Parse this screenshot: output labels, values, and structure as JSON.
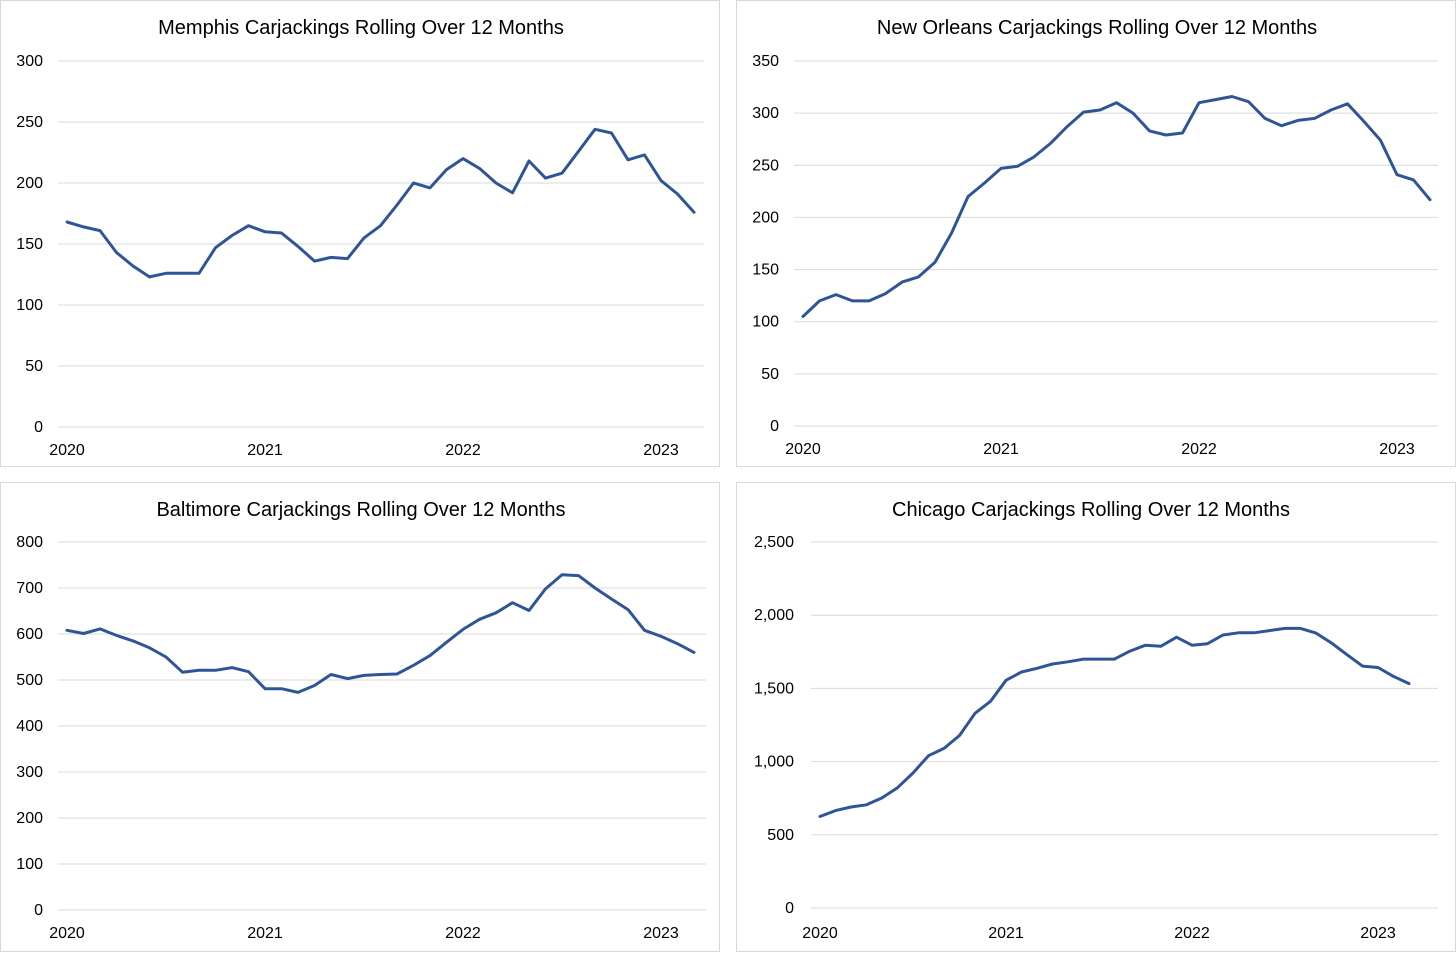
{
  "chart_data": [
    {
      "type": "line",
      "title": "Memphis Carjackings Rolling Over 12 Months",
      "xlabel": "",
      "ylabel": "",
      "x_tick_labels": [
        "2020",
        "2021",
        "2022",
        "2023"
      ],
      "y_tick_labels": [
        "0",
        "50",
        "100",
        "150",
        "200",
        "250",
        "300"
      ],
      "ylim": [
        0,
        300
      ],
      "grid": true,
      "legend": "none",
      "series_color": "#2f5597",
      "series": [
        {
          "values": [
            168,
            164,
            161,
            143,
            132,
            123,
            126,
            126,
            126,
            147,
            157,
            165,
            160,
            159,
            148,
            136,
            139,
            138,
            155,
            165,
            182,
            200,
            196,
            211,
            220,
            212,
            200,
            192,
            218,
            204,
            208,
            226,
            244,
            241,
            219,
            223,
            202,
            191,
            176
          ]
        }
      ]
    },
    {
      "type": "line",
      "title": "New Orleans Carjackings Rolling Over 12 Months",
      "xlabel": "",
      "ylabel": "",
      "x_tick_labels": [
        "2020",
        "2021",
        "2022",
        "2023"
      ],
      "y_tick_labels": [
        "0",
        "50",
        "100",
        "150",
        "200",
        "250",
        "300",
        "350"
      ],
      "ylim": [
        0,
        350
      ],
      "grid": true,
      "legend": "none",
      "series_color": "#2f5597",
      "series": [
        {
          "values": [
            105,
            120,
            126,
            120,
            120,
            127,
            138,
            143,
            157,
            185,
            220,
            233,
            247,
            249,
            258,
            271,
            287,
            301,
            303,
            310,
            300,
            283,
            279,
            281,
            310,
            313,
            316,
            311,
            295,
            288,
            293,
            295,
            303,
            309,
            292,
            274,
            241,
            236,
            217
          ]
        }
      ]
    },
    {
      "type": "line",
      "title": "Baltimore Carjackings Rolling Over 12 Months",
      "xlabel": "",
      "ylabel": "",
      "x_tick_labels": [
        "2020",
        "2021",
        "2022",
        "2023"
      ],
      "y_tick_labels": [
        "0",
        "100",
        "200",
        "300",
        "400",
        "500",
        "600",
        "700",
        "800"
      ],
      "ylim": [
        0,
        800
      ],
      "grid": true,
      "legend": "none",
      "series_color": "#2f5597",
      "series": [
        {
          "values": [
            608,
            601,
            611,
            597,
            585,
            570,
            550,
            517,
            521,
            521,
            527,
            518,
            481,
            481,
            473,
            488,
            512,
            503,
            510,
            512,
            513,
            532,
            553,
            582,
            610,
            632,
            646,
            668,
            651,
            698,
            729,
            727,
            700,
            676,
            653,
            608,
            595,
            579,
            560
          ]
        }
      ]
    },
    {
      "type": "line",
      "title": "Chicago Carjackings Rolling Over 12 Months",
      "xlabel": "",
      "ylabel": "",
      "x_tick_labels": [
        "2020",
        "2021",
        "2022",
        "2023"
      ],
      "y_tick_labels": [
        "0",
        "500",
        "1,000",
        "1,500",
        "2,000",
        "2,500"
      ],
      "ylim": [
        0,
        2500
      ],
      "grid": true,
      "legend": "none",
      "series_color": "#2f5597",
      "series": [
        {
          "values": [
            625,
            665,
            690,
            705,
            752,
            822,
            922,
            1040,
            1090,
            1178,
            1330,
            1412,
            1555,
            1612,
            1637,
            1667,
            1682,
            1700,
            1700,
            1700,
            1755,
            1795,
            1788,
            1850,
            1795,
            1805,
            1865,
            1880,
            1880,
            1895,
            1910,
            1910,
            1878,
            1810,
            1730,
            1652,
            1643,
            1582,
            1533
          ]
        }
      ]
    }
  ]
}
